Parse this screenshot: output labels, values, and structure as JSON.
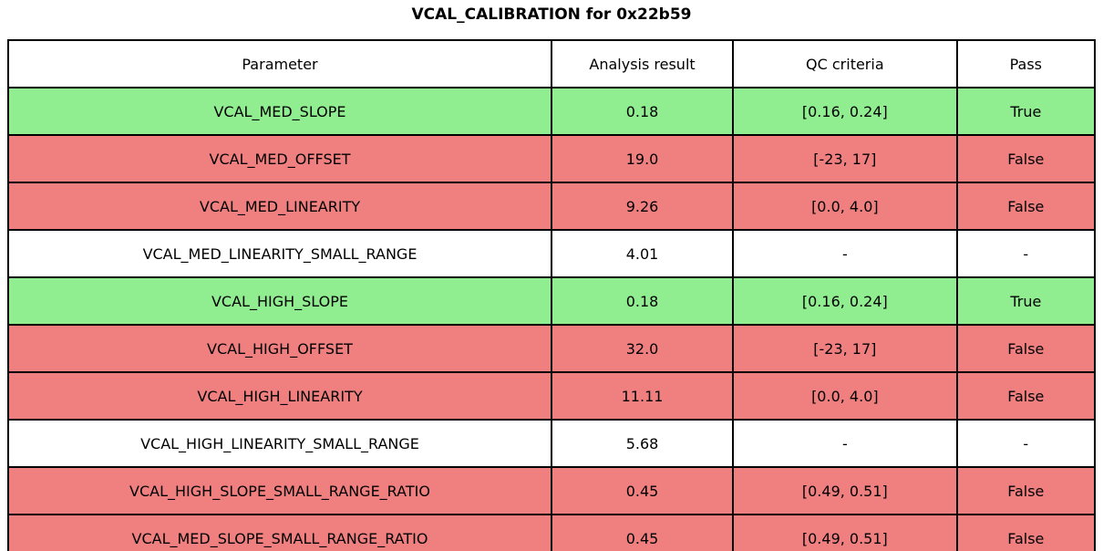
{
  "title": "VCAL_CALIBRATION for 0x22b59",
  "table": {
    "columns": [
      "Parameter",
      "Analysis result",
      "QC criteria",
      "Pass"
    ],
    "rows": [
      {
        "parameter": "VCAL_MED_SLOPE",
        "result": "0.18",
        "criteria": "[0.16, 0.24]",
        "pass": "True",
        "status": "pass"
      },
      {
        "parameter": "VCAL_MED_OFFSET",
        "result": "19.0",
        "criteria": "[-23, 17]",
        "pass": "False",
        "status": "fail"
      },
      {
        "parameter": "VCAL_MED_LINEARITY",
        "result": "9.26",
        "criteria": "[0.0, 4.0]",
        "pass": "False",
        "status": "fail"
      },
      {
        "parameter": "VCAL_MED_LINEARITY_SMALL_RANGE",
        "result": "4.01",
        "criteria": "-",
        "pass": "-",
        "status": "none"
      },
      {
        "parameter": "VCAL_HIGH_SLOPE",
        "result": "0.18",
        "criteria": "[0.16, 0.24]",
        "pass": "True",
        "status": "pass"
      },
      {
        "parameter": "VCAL_HIGH_OFFSET",
        "result": "32.0",
        "criteria": "[-23, 17]",
        "pass": "False",
        "status": "fail"
      },
      {
        "parameter": "VCAL_HIGH_LINEARITY",
        "result": "11.11",
        "criteria": "[0.0, 4.0]",
        "pass": "False",
        "status": "fail"
      },
      {
        "parameter": "VCAL_HIGH_LINEARITY_SMALL_RANGE",
        "result": "5.68",
        "criteria": "-",
        "pass": "-",
        "status": "none"
      },
      {
        "parameter": "VCAL_HIGH_SLOPE_SMALL_RANGE_RATIO",
        "result": "0.45",
        "criteria": "[0.49, 0.51]",
        "pass": "False",
        "status": "fail"
      },
      {
        "parameter": "VCAL_MED_SLOPE_SMALL_RANGE_RATIO",
        "result": "0.45",
        "criteria": "[0.49, 0.51]",
        "pass": "False",
        "status": "fail"
      }
    ]
  },
  "colors": {
    "pass": "#90EE90",
    "fail": "#F08080",
    "none": "#FFFFFF"
  }
}
